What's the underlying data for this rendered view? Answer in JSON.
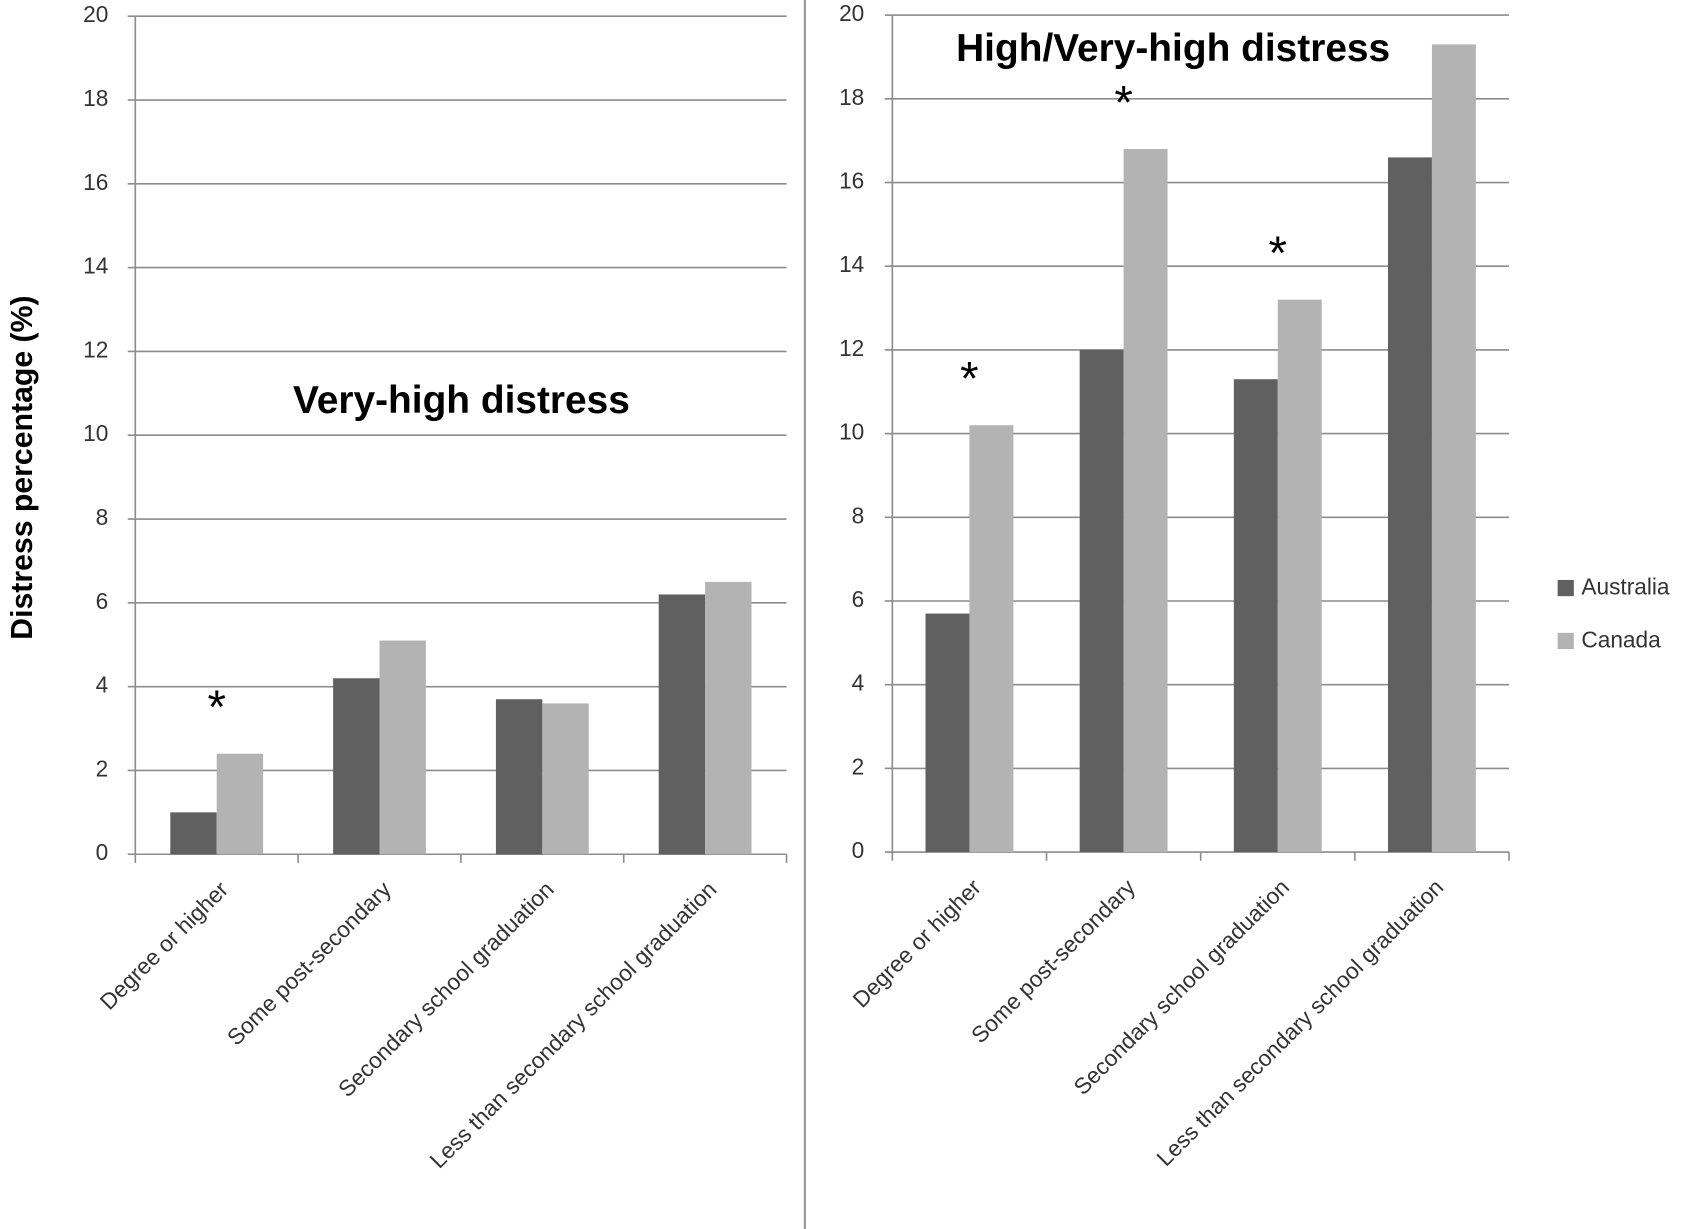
{
  "chart_data": [
    {
      "type": "bar",
      "title": "Very-high distress",
      "y_label": "Distress percentage (%)",
      "categories": [
        "Degree or higher",
        "Some post-secondary",
        "Secondary school graduation",
        "Less than secondary school graduation"
      ],
      "series": [
        {
          "name": "Australia",
          "color": "#606060",
          "values": [
            1.0,
            4.2,
            3.7,
            6.2
          ]
        },
        {
          "name": "Canada",
          "color": "#b3b3b3",
          "values": [
            2.4,
            5.1,
            3.6,
            6.5
          ]
        }
      ],
      "significance": [
        "*",
        null,
        null,
        null
      ],
      "ylim": [
        0,
        20
      ],
      "yticks": [
        0,
        2,
        4,
        6,
        8,
        10,
        12,
        14,
        16,
        18,
        20
      ],
      "grid": true,
      "legend": false
    },
    {
      "type": "bar",
      "title": "High/Very-high distress",
      "categories": [
        "Degree or higher",
        "Some post-secondary",
        "Secondary school graduation",
        "Less than secondary school graduation"
      ],
      "series": [
        {
          "name": "Australia",
          "color": "#606060",
          "values": [
            5.7,
            12.0,
            11.3,
            16.6
          ]
        },
        {
          "name": "Canada",
          "color": "#b3b3b3",
          "values": [
            10.2,
            16.8,
            13.2,
            19.3
          ]
        }
      ],
      "significance": [
        "*",
        "*",
        "*",
        null
      ],
      "ylim": [
        0,
        20
      ],
      "yticks": [
        0,
        2,
        4,
        6,
        8,
        10,
        12,
        14,
        16,
        18,
        20
      ],
      "grid": true,
      "legend": "right"
    }
  ]
}
